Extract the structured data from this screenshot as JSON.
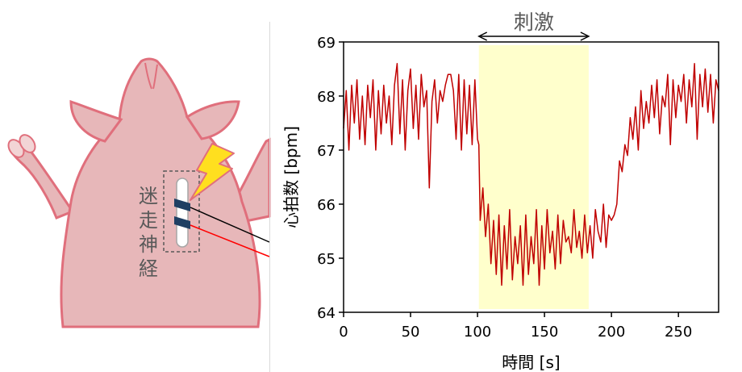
{
  "illustration": {
    "label_chars": [
      "迷",
      "走",
      "神",
      "経"
    ],
    "colors": {
      "body": "#e7b7b9",
      "outline": "#e06f7c",
      "nerve_band": "#1f3f63",
      "bolt": "#ffdf1f",
      "wire_black": "#000000",
      "wire_red": "#ff0000"
    }
  },
  "chart_data": {
    "type": "line",
    "xlabel": "時間 [s]",
    "ylabel": "心拍数 [bpm]",
    "xlim": [
      0,
      280
    ],
    "ylim": [
      64,
      69
    ],
    "xticks": [
      0,
      50,
      100,
      150,
      200,
      250
    ],
    "yticks": [
      64,
      65,
      66,
      67,
      68,
      69
    ],
    "grid": false,
    "line_color": "#c00000",
    "stimulus": {
      "label": "刺激",
      "start": 101,
      "end": 183,
      "color": "#ffffcc"
    },
    "series": [
      {
        "x": [
          0,
          2,
          4,
          6,
          8,
          10,
          12,
          14,
          16,
          18,
          20,
          22,
          24,
          26,
          28,
          30,
          32,
          34,
          36,
          38,
          40,
          42,
          44,
          46,
          48,
          50,
          52,
          54,
          56,
          58,
          60,
          62,
          64,
          66,
          68,
          70,
          72,
          74,
          76,
          78,
          80,
          82,
          84,
          86,
          88,
          90,
          92,
          94,
          96,
          98,
          100,
          101,
          102,
          104,
          106,
          108,
          110,
          112,
          114,
          116,
          118,
          120,
          122,
          124,
          126,
          128,
          130,
          132,
          134,
          136,
          138,
          140,
          142,
          144,
          146,
          148,
          150,
          152,
          154,
          156,
          158,
          160,
          162,
          164,
          166,
          168,
          170,
          172,
          174,
          176,
          178,
          180,
          182,
          184,
          186,
          188,
          190,
          192,
          194,
          196,
          198,
          200,
          202,
          204,
          206,
          208,
          210,
          212,
          214,
          216,
          218,
          220,
          222,
          224,
          226,
          228,
          230,
          232,
          234,
          236,
          238,
          240,
          242,
          244,
          246,
          248,
          250,
          252,
          254,
          256,
          258,
          260,
          262,
          264,
          266,
          268,
          270,
          272,
          274,
          276,
          278,
          280
        ],
        "values": [
          67.4,
          68.1,
          67.0,
          68.2,
          67.5,
          68.3,
          67.2,
          68.0,
          67.1,
          68.2,
          67.6,
          68.3,
          67.0,
          68.1,
          67.3,
          68.2,
          67.5,
          68.0,
          67.1,
          68.2,
          68.6,
          67.3,
          68.3,
          67.0,
          68.1,
          68.5,
          67.4,
          68.2,
          67.2,
          68.4,
          67.8,
          68.1,
          66.3,
          67.9,
          68.3,
          67.5,
          68.1,
          67.9,
          68.2,
          68.4,
          68.4,
          68.1,
          67.2,
          68.4,
          67.0,
          68.3,
          67.3,
          68.2,
          67.1,
          68.3,
          67.2,
          67.1,
          65.7,
          66.3,
          65.4,
          66.0,
          64.9,
          65.7,
          64.7,
          65.8,
          64.5,
          65.6,
          64.8,
          65.9,
          64.6,
          65.4,
          64.9,
          65.6,
          64.5,
          65.8,
          64.7,
          65.4,
          64.9,
          65.9,
          64.5,
          65.6,
          64.8,
          65.9,
          65.1,
          65.5,
          64.8,
          65.8,
          64.9,
          65.7,
          65.3,
          65.4,
          65.1,
          65.9,
          65.2,
          65.5,
          65.0,
          65.8,
          65.1,
          65.6,
          65.0,
          65.9,
          65.5,
          65.3,
          66.0,
          65.2,
          65.8,
          65.7,
          65.8,
          66.0,
          66.8,
          66.6,
          67.1,
          66.9,
          67.6,
          67.2,
          67.8,
          67.0,
          68.1,
          67.4,
          67.9,
          67.5,
          68.2,
          67.6,
          68.3,
          67.3,
          68.0,
          67.8,
          68.4,
          67.1,
          68.3,
          67.6,
          68.2,
          67.9,
          68.4,
          67.5,
          68.3,
          67.8,
          68.6,
          67.2,
          68.4,
          67.8,
          68.5,
          67.7,
          68.4,
          67.5,
          68.3,
          68.1
        ]
      }
    ]
  }
}
